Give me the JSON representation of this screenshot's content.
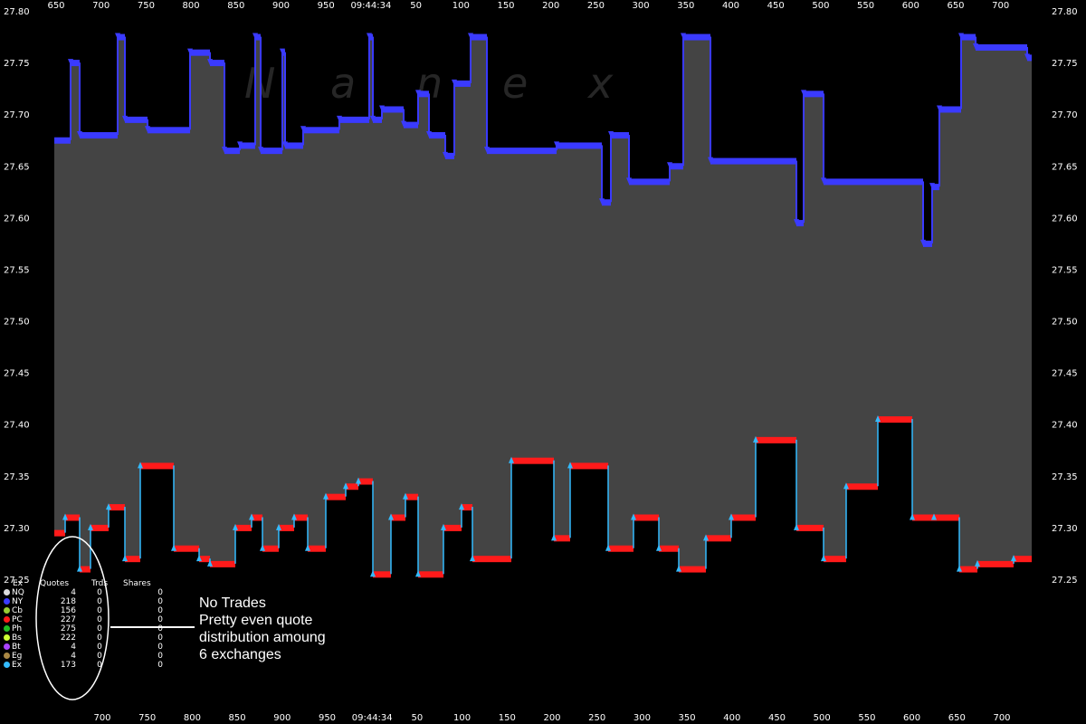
{
  "chart_data": {
    "type": "scatter",
    "watermark": "Nanex",
    "ylim": [
      27.25,
      27.8
    ],
    "y_ticks": [
      "27.80",
      "27.75",
      "27.70",
      "27.65",
      "27.60",
      "27.55",
      "27.50",
      "27.45",
      "27.40",
      "27.35",
      "27.30",
      "27.25"
    ],
    "x_ticks_top": [
      "650",
      "700",
      "750",
      "800",
      "850",
      "900",
      "950",
      "09:44:34",
      "50",
      "100",
      "150",
      "200",
      "250",
      "300",
      "350",
      "400",
      "450",
      "500",
      "550",
      "600",
      "650",
      "700"
    ],
    "x_ticks_bottom": [
      "700",
      "750",
      "800",
      "850",
      "900",
      "950",
      "09:44:34",
      "50",
      "100",
      "150",
      "200",
      "250",
      "300",
      "350",
      "400",
      "450",
      "500",
      "550",
      "600",
      "650",
      "700"
    ],
    "colors": {
      "background": "#000000",
      "spread": "#444444",
      "best_bid": "#ff1a1a",
      "best_ask": "#3a3aff",
      "ny": "#3a3aff",
      "ex": "#33bbff"
    },
    "ask_steps": [
      {
        "x0": 0,
        "x1": 18,
        "y": 27.675
      },
      {
        "x0": 18,
        "x1": 28,
        "y": 27.75
      },
      {
        "x0": 28,
        "x1": 70,
        "y": 27.68
      },
      {
        "x0": 70,
        "x1": 78,
        "y": 27.775
      },
      {
        "x0": 78,
        "x1": 103,
        "y": 27.695
      },
      {
        "x0": 103,
        "x1": 150,
        "y": 27.685
      },
      {
        "x0": 150,
        "x1": 172,
        "y": 27.76
      },
      {
        "x0": 172,
        "x1": 188,
        "y": 27.75
      },
      {
        "x0": 188,
        "x1": 205,
        "y": 27.665
      },
      {
        "x0": 205,
        "x1": 222,
        "y": 27.67
      },
      {
        "x0": 222,
        "x1": 228,
        "y": 27.775
      },
      {
        "x0": 228,
        "x1": 252,
        "y": 27.665
      },
      {
        "x0": 252,
        "x1": 255,
        "y": 27.76
      },
      {
        "x0": 255,
        "x1": 275,
        "y": 27.67
      },
      {
        "x0": 275,
        "x1": 315,
        "y": 27.685
      },
      {
        "x0": 315,
        "x1": 348,
        "y": 27.695
      },
      {
        "x0": 348,
        "x1": 352,
        "y": 27.775
      },
      {
        "x0": 352,
        "x1": 362,
        "y": 27.695
      },
      {
        "x0": 362,
        "x1": 386,
        "y": 27.705
      },
      {
        "x0": 386,
        "x1": 402,
        "y": 27.69
      },
      {
        "x0": 402,
        "x1": 414,
        "y": 27.72
      },
      {
        "x0": 414,
        "x1": 432,
        "y": 27.68
      },
      {
        "x0": 432,
        "x1": 442,
        "y": 27.66
      },
      {
        "x0": 442,
        "x1": 460,
        "y": 27.73
      },
      {
        "x0": 460,
        "x1": 478,
        "y": 27.775
      },
      {
        "x0": 478,
        "x1": 555,
        "y": 27.665
      },
      {
        "x0": 555,
        "x1": 605,
        "y": 27.67
      },
      {
        "x0": 605,
        "x1": 615,
        "y": 27.615
      },
      {
        "x0": 615,
        "x1": 635,
        "y": 27.68
      },
      {
        "x0": 635,
        "x1": 680,
        "y": 27.635
      },
      {
        "x0": 680,
        "x1": 695,
        "y": 27.65
      },
      {
        "x0": 695,
        "x1": 725,
        "y": 27.775
      },
      {
        "x0": 725,
        "x1": 820,
        "y": 27.655
      },
      {
        "x0": 820,
        "x1": 828,
        "y": 27.595
      },
      {
        "x0": 828,
        "x1": 850,
        "y": 27.72
      },
      {
        "x0": 850,
        "x1": 960,
        "y": 27.635
      },
      {
        "x0": 960,
        "x1": 970,
        "y": 27.575
      },
      {
        "x0": 970,
        "x1": 978,
        "y": 27.63
      },
      {
        "x0": 978,
        "x1": 1002,
        "y": 27.705
      },
      {
        "x0": 1002,
        "x1": 1018,
        "y": 27.775
      },
      {
        "x0": 1018,
        "x1": 1075,
        "y": 27.765
      },
      {
        "x0": 1075,
        "x1": 1080,
        "y": 27.755
      }
    ],
    "bid_steps": [
      {
        "x0": 0,
        "x1": 12,
        "y": 27.295
      },
      {
        "x0": 12,
        "x1": 28,
        "y": 27.31
      },
      {
        "x0": 28,
        "x1": 40,
        "y": 27.26
      },
      {
        "x0": 40,
        "x1": 60,
        "y": 27.3
      },
      {
        "x0": 60,
        "x1": 78,
        "y": 27.32
      },
      {
        "x0": 78,
        "x1": 95,
        "y": 27.27
      },
      {
        "x0": 95,
        "x1": 132,
        "y": 27.36
      },
      {
        "x0": 132,
        "x1": 160,
        "y": 27.28
      },
      {
        "x0": 160,
        "x1": 172,
        "y": 27.27
      },
      {
        "x0": 172,
        "x1": 200,
        "y": 27.265
      },
      {
        "x0": 200,
        "x1": 218,
        "y": 27.3
      },
      {
        "x0": 218,
        "x1": 230,
        "y": 27.31
      },
      {
        "x0": 230,
        "x1": 248,
        "y": 27.28
      },
      {
        "x0": 248,
        "x1": 265,
        "y": 27.3
      },
      {
        "x0": 265,
        "x1": 280,
        "y": 27.31
      },
      {
        "x0": 280,
        "x1": 300,
        "y": 27.28
      },
      {
        "x0": 300,
        "x1": 322,
        "y": 27.33
      },
      {
        "x0": 322,
        "x1": 336,
        "y": 27.34
      },
      {
        "x0": 336,
        "x1": 352,
        "y": 27.345
      },
      {
        "x0": 352,
        "x1": 372,
        "y": 27.255
      },
      {
        "x0": 372,
        "x1": 388,
        "y": 27.31
      },
      {
        "x0": 388,
        "x1": 402,
        "y": 27.33
      },
      {
        "x0": 402,
        "x1": 430,
        "y": 27.255
      },
      {
        "x0": 430,
        "x1": 450,
        "y": 27.3
      },
      {
        "x0": 450,
        "x1": 462,
        "y": 27.32
      },
      {
        "x0": 462,
        "x1": 505,
        "y": 27.27
      },
      {
        "x0": 505,
        "x1": 552,
        "y": 27.365
      },
      {
        "x0": 552,
        "x1": 570,
        "y": 27.29
      },
      {
        "x0": 570,
        "x1": 612,
        "y": 27.36
      },
      {
        "x0": 612,
        "x1": 640,
        "y": 27.28
      },
      {
        "x0": 640,
        "x1": 668,
        "y": 27.31
      },
      {
        "x0": 668,
        "x1": 690,
        "y": 27.28
      },
      {
        "x0": 690,
        "x1": 720,
        "y": 27.26
      },
      {
        "x0": 720,
        "x1": 748,
        "y": 27.29
      },
      {
        "x0": 748,
        "x1": 775,
        "y": 27.31
      },
      {
        "x0": 775,
        "x1": 820,
        "y": 27.385
      },
      {
        "x0": 820,
        "x1": 850,
        "y": 27.3
      },
      {
        "x0": 850,
        "x1": 875,
        "y": 27.27
      },
      {
        "x0": 875,
        "x1": 910,
        "y": 27.34
      },
      {
        "x0": 910,
        "x1": 948,
        "y": 27.405
      },
      {
        "x0": 948,
        "x1": 972,
        "y": 27.31
      },
      {
        "x0": 972,
        "x1": 1000,
        "y": 27.31
      },
      {
        "x0": 1000,
        "x1": 1020,
        "y": 27.26
      },
      {
        "x0": 1020,
        "x1": 1060,
        "y": 27.265
      },
      {
        "x0": 1060,
        "x1": 1080,
        "y": 27.27
      }
    ]
  },
  "legend": {
    "headers": {
      "ex": "Ex",
      "quotes": "Quotes",
      "trds": "Trds",
      "shares": "Shares"
    },
    "rows": [
      {
        "ex": "NQ",
        "quotes": "4",
        "trds": "0",
        "shares": "0",
        "color": "#dddddd"
      },
      {
        "ex": "NY",
        "quotes": "218",
        "trds": "0",
        "shares": "0",
        "color": "#3a3aff"
      },
      {
        "ex": "Cb",
        "quotes": "156",
        "trds": "0",
        "shares": "0",
        "color": "#99cc33"
      },
      {
        "ex": "PC",
        "quotes": "227",
        "trds": "0",
        "shares": "0",
        "color": "#ff1a1a"
      },
      {
        "ex": "Ph",
        "quotes": "275",
        "trds": "0",
        "shares": "0",
        "color": "#22bb22"
      },
      {
        "ex": "Bs",
        "quotes": "222",
        "trds": "0",
        "shares": "0",
        "color": "#ccff33"
      },
      {
        "ex": "Bt",
        "quotes": "4",
        "trds": "0",
        "shares": "0",
        "color": "#aa44ff"
      },
      {
        "ex": "Eg",
        "quotes": "4",
        "trds": "0",
        "shares": "0",
        "color": "#aa8844"
      },
      {
        "ex": "Ex",
        "quotes": "173",
        "trds": "0",
        "shares": "0",
        "color": "#33bbff"
      }
    ]
  },
  "annotation": {
    "lines": [
      "No Trades",
      "Pretty even quote",
      "distribution amoung",
      "6 exchanges"
    ]
  }
}
